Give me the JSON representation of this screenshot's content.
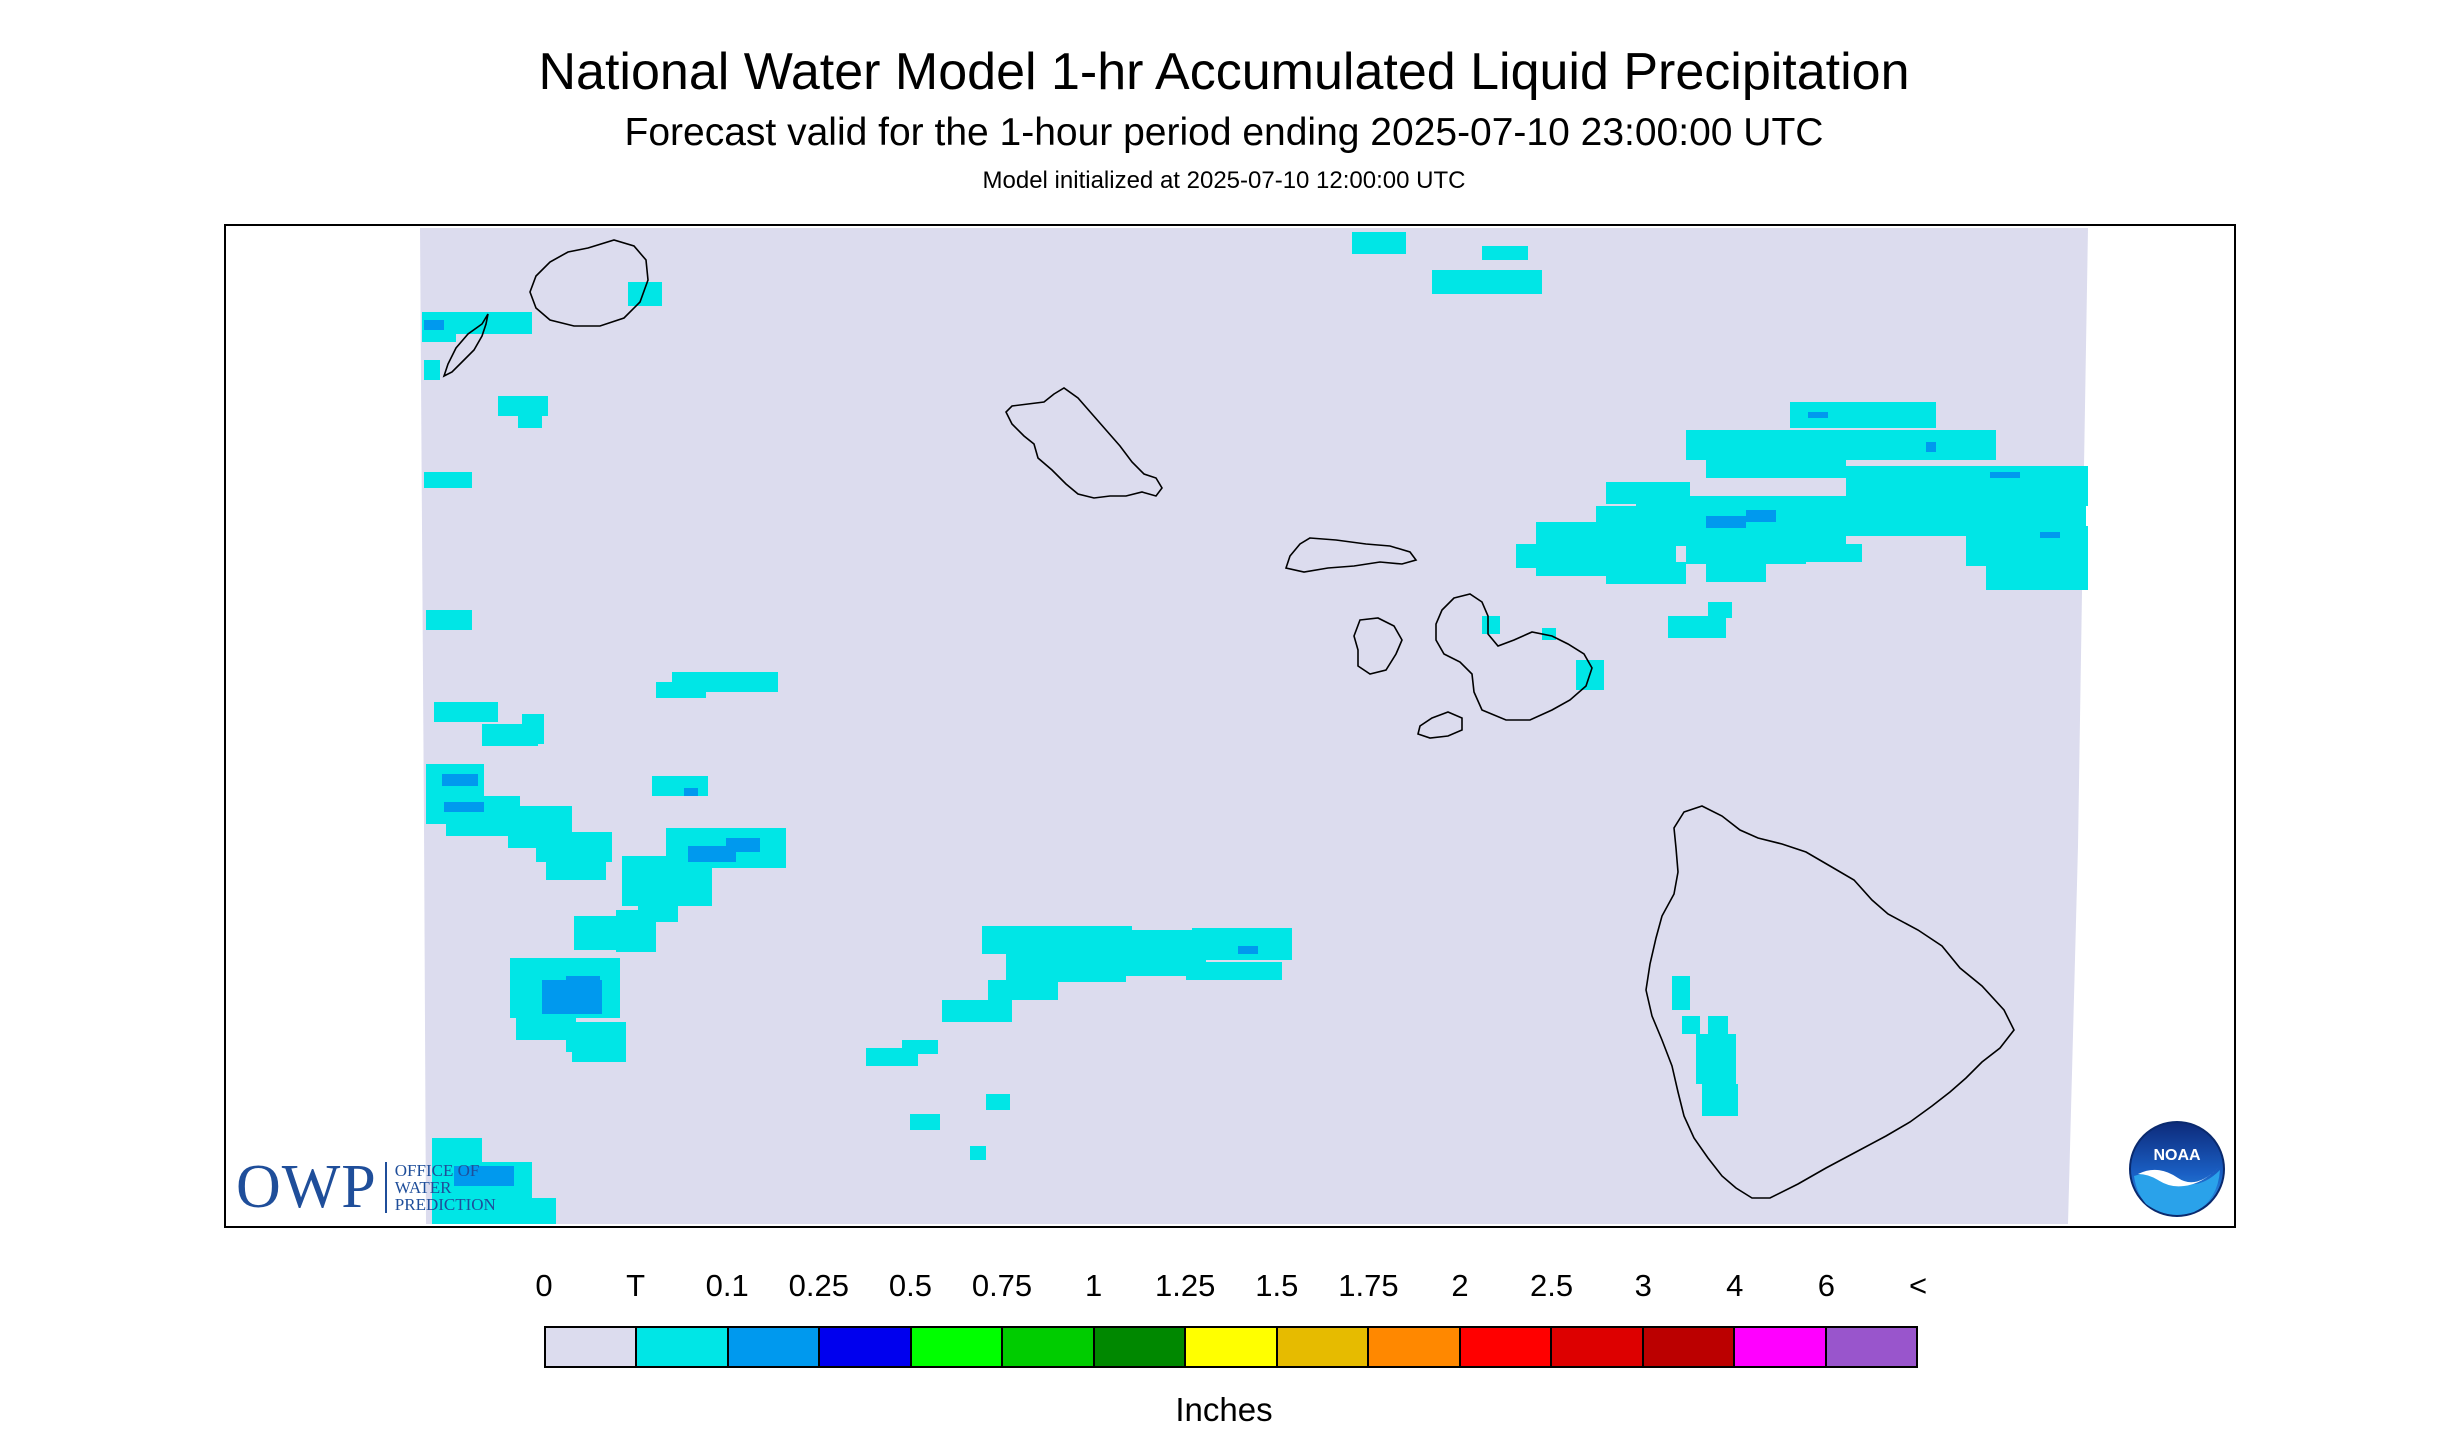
{
  "header": {
    "title": "National Water Model 1-hr Accumulated Liquid Precipitation",
    "subtitle": "Forecast valid for the 1-hour period ending 2025-07-10 23:00:00 UTC",
    "init": "Model initialized at 2025-07-10 12:00:00 UTC"
  },
  "map": {
    "background_color": "#dcdcee",
    "precip_colors": {
      "trace": "#00e6e6",
      "light": "#0099ee"
    },
    "islands": [
      "Niihau",
      "Kauai",
      "Oahu",
      "Molokai",
      "Lanai",
      "Maui",
      "Kahoolawe",
      "Hawaii"
    ]
  },
  "logos": {
    "owp_mark": "OWP",
    "owp_line1": "OFFICE OF",
    "owp_line2": "WATER",
    "owp_line3": "PREDICTION",
    "noaa": "NOAA"
  },
  "legend": {
    "labels": [
      "0",
      "T",
      "0.1",
      "0.25",
      "0.5",
      "0.75",
      "1",
      "1.25",
      "1.5",
      "1.75",
      "2",
      "2.5",
      "3",
      "4",
      "6",
      "<"
    ],
    "colors": [
      "#dcdcee",
      "#00e6e6",
      "#0099ee",
      "#0000ee",
      "#00ff00",
      "#00cc00",
      "#008800",
      "#ffff00",
      "#e6bb00",
      "#ff8800",
      "#ff0000",
      "#dd0000",
      "#bb0000",
      "#ff00ff",
      "#9955cc"
    ],
    "units": "Inches"
  }
}
